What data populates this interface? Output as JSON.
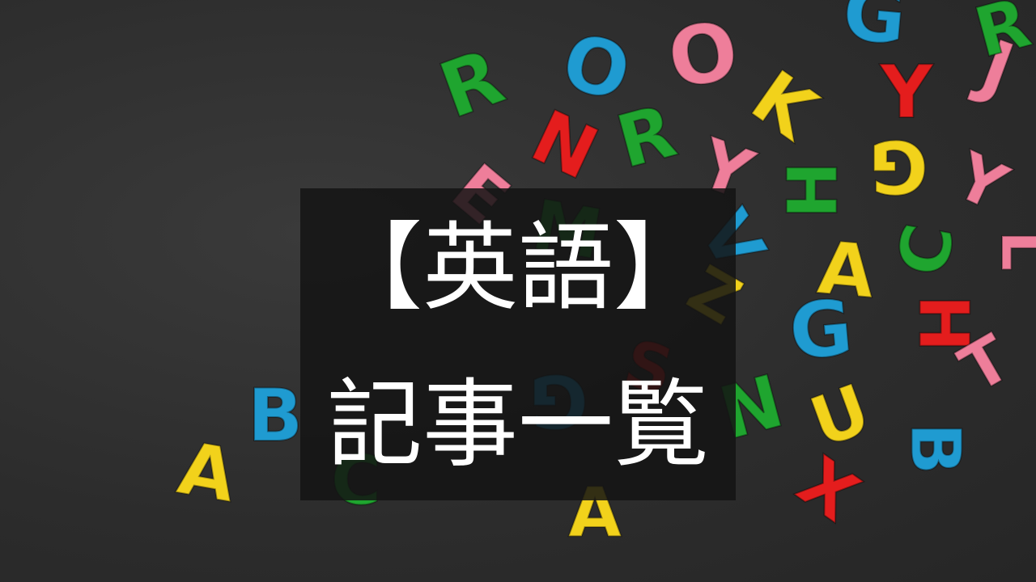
{
  "title": {
    "line1": "【英語】",
    "line2": "記事一覧"
  },
  "colors": {
    "background": "#2f2f2f",
    "overlay": "#141414",
    "text": "#ffffff",
    "letter_palette": [
      "#1fa52f",
      "#e41d1d",
      "#f2d21b",
      "#1f9bd1",
      "#ee7e9a"
    ]
  },
  "letters": [
    {
      "ch": "R",
      "color": "#1fa52f"
    },
    {
      "ch": "O",
      "color": "#1f9bd1"
    },
    {
      "ch": "O",
      "color": "#ee7e9a"
    },
    {
      "ch": "K",
      "color": "#f2d21b"
    },
    {
      "ch": "G",
      "color": "#1f9bd1"
    },
    {
      "ch": "R",
      "color": "#1fa52f"
    },
    {
      "ch": "Y",
      "color": "#e41d1d"
    },
    {
      "ch": "J",
      "color": "#ee7e9a"
    },
    {
      "ch": "N",
      "color": "#e41d1d"
    },
    {
      "ch": "R",
      "color": "#1fa52f"
    },
    {
      "ch": "Y",
      "color": "#ee7e9a"
    },
    {
      "ch": "H",
      "color": "#1fa52f"
    },
    {
      "ch": "G",
      "color": "#f2d21b"
    },
    {
      "ch": "Y",
      "color": "#ee7e9a"
    },
    {
      "ch": "E",
      "color": "#ee7e9a"
    },
    {
      "ch": "M",
      "color": "#1fa52f"
    },
    {
      "ch": "V",
      "color": "#1f9bd1"
    },
    {
      "ch": "A",
      "color": "#f2d21b"
    },
    {
      "ch": "C",
      "color": "#1fa52f"
    },
    {
      "ch": "L",
      "color": "#ee7e9a"
    },
    {
      "ch": "Z",
      "color": "#f2d21b"
    },
    {
      "ch": "G",
      "color": "#1f9bd1"
    },
    {
      "ch": "H",
      "color": "#e41d1d"
    },
    {
      "ch": "T",
      "color": "#ee7e9a"
    },
    {
      "ch": "S",
      "color": "#e41d1d"
    },
    {
      "ch": "A",
      "color": "#f2d21b"
    },
    {
      "ch": "B",
      "color": "#1f9bd1"
    },
    {
      "ch": "G",
      "color": "#1f9bd1"
    },
    {
      "ch": "N",
      "color": "#1fa52f"
    },
    {
      "ch": "U",
      "color": "#f2d21b"
    },
    {
      "ch": "B",
      "color": "#1f9bd1"
    },
    {
      "ch": "X",
      "color": "#e41d1d"
    },
    {
      "ch": "A",
      "color": "#f2d21b"
    },
    {
      "ch": "C",
      "color": "#1fa52f"
    }
  ]
}
